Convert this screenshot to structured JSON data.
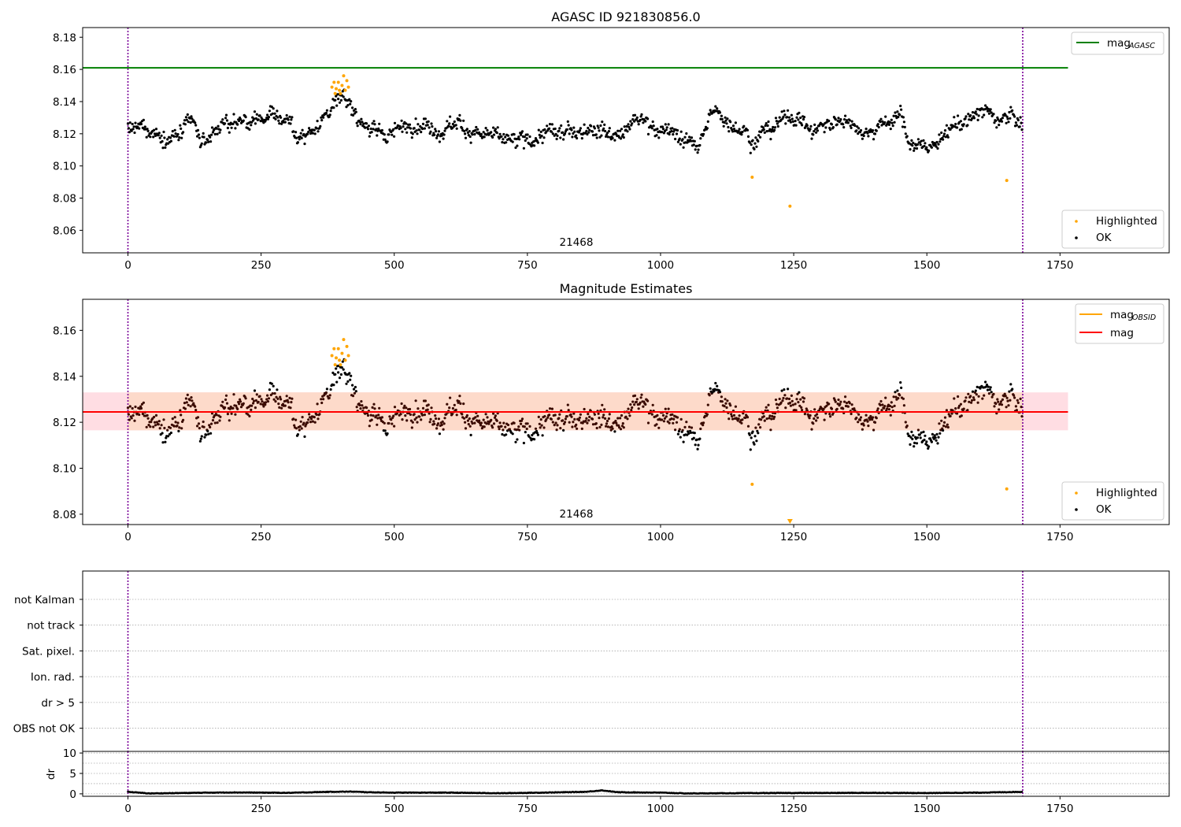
{
  "chart_data": [
    {
      "type": "scatter",
      "title": "AGASC ID 921830856.0",
      "annotation": "21468",
      "xlim": [
        -85,
        1955
      ],
      "ylim": [
        8.046,
        8.186
      ],
      "xticks": [
        "0",
        "250",
        "500",
        "750",
        "1000",
        "1250",
        "1500",
        "1750"
      ],
      "yticks": [
        "8.06",
        "8.08",
        "8.10",
        "8.12",
        "8.14",
        "8.16",
        "8.18"
      ],
      "ref_line": {
        "name_main": "mag",
        "name_sub": "AGASC",
        "y": 8.161,
        "x_range": [
          -85,
          1765
        ],
        "color": "#008000"
      },
      "obs_boundaries": [
        0,
        1680
      ],
      "legend_lines": [
        {
          "name_main": "mag",
          "name_sub": "AGASC",
          "color": "#008000"
        }
      ],
      "legend_points": [
        {
          "name": "Highlighted",
          "color": "#ffa500"
        },
        {
          "name": "OK",
          "color": "#000000"
        }
      ],
      "highlighted_points": [
        [
          383,
          8.149
        ],
        [
          387,
          8.152
        ],
        [
          391,
          8.148
        ],
        [
          395,
          8.152
        ],
        [
          399,
          8.145
        ],
        [
          402,
          8.15
        ],
        [
          405,
          8.156
        ],
        [
          408,
          8.147
        ],
        [
          411,
          8.153
        ],
        [
          414,
          8.149
        ],
        [
          389,
          8.145
        ],
        [
          397,
          8.147
        ],
        [
          1172,
          8.093
        ],
        [
          1243,
          8.075
        ],
        [
          1650,
          8.091
        ]
      ],
      "ok_series_profile": [
        [
          0,
          8.124
        ],
        [
          30,
          8.121
        ],
        [
          60,
          8.119
        ],
        [
          100,
          8.118
        ],
        [
          120,
          8.126
        ],
        [
          140,
          8.112
        ],
        [
          170,
          8.125
        ],
        [
          200,
          8.129
        ],
        [
          230,
          8.124
        ],
        [
          270,
          8.133
        ],
        [
          300,
          8.129
        ],
        [
          320,
          8.116
        ],
        [
          350,
          8.124
        ],
        [
          380,
          8.136
        ],
        [
          400,
          8.143
        ],
        [
          420,
          8.137
        ],
        [
          440,
          8.128
        ],
        [
          470,
          8.118
        ],
        [
          490,
          8.121
        ],
        [
          540,
          8.127
        ],
        [
          580,
          8.123
        ],
        [
          620,
          8.127
        ],
        [
          650,
          8.121
        ],
        [
          700,
          8.116
        ],
        [
          730,
          8.114
        ],
        [
          780,
          8.119
        ],
        [
          830,
          8.121
        ],
        [
          870,
          8.126
        ],
        [
          920,
          8.119
        ],
        [
          960,
          8.129
        ],
        [
          1000,
          8.124
        ],
        [
          1040,
          8.117
        ],
        [
          1070,
          8.111
        ],
        [
          1100,
          8.135
        ],
        [
          1130,
          8.128
        ],
        [
          1160,
          8.122
        ],
        [
          1180,
          8.116
        ],
        [
          1210,
          8.126
        ],
        [
          1250,
          8.131
        ],
        [
          1290,
          8.122
        ],
        [
          1320,
          8.126
        ],
        [
          1350,
          8.129
        ],
        [
          1380,
          8.122
        ],
        [
          1400,
          8.124
        ],
        [
          1450,
          8.131
        ],
        [
          1470,
          8.114
        ],
        [
          1500,
          8.111
        ],
        [
          1530,
          8.117
        ],
        [
          1560,
          8.126
        ],
        [
          1600,
          8.134
        ],
        [
          1640,
          8.129
        ],
        [
          1665,
          8.131
        ],
        [
          1680,
          8.124
        ]
      ]
    },
    {
      "type": "scatter",
      "title": "Magnitude Estimates",
      "annotation": "21468",
      "xlim": [
        -85,
        1955
      ],
      "ylim": [
        8.0755,
        8.1735
      ],
      "xticks": [
        "0",
        "250",
        "500",
        "750",
        "1000",
        "1250",
        "1500",
        "1750"
      ],
      "yticks": [
        "8.08",
        "8.10",
        "8.12",
        "8.14",
        "8.16"
      ],
      "mean_line": {
        "name": "mag",
        "y": 8.1245,
        "x_range": [
          -85,
          1765
        ],
        "color": "#ff0000"
      },
      "band_outer": {
        "y": [
          8.1165,
          8.133
        ],
        "x_range": [
          -85,
          1765
        ],
        "color": "#ffdde3"
      },
      "band_inner": {
        "y": [
          8.1165,
          8.133
        ],
        "x_range": [
          0,
          1680
        ],
        "color": "#fddaca"
      },
      "obs_boundaries": [
        0,
        1680
      ],
      "legend_lines": [
        {
          "name_main": "mag",
          "name_sub": "OBSID",
          "color": "#ffa500"
        },
        {
          "name_main": "mag",
          "name_sub": "",
          "color": "#ff0000"
        }
      ],
      "legend_points": [
        {
          "name": "Highlighted",
          "color": "#ffa500"
        },
        {
          "name": "OK",
          "color": "#000000"
        }
      ],
      "highlighted_points": [
        [
          383,
          8.149
        ],
        [
          387,
          8.152
        ],
        [
          391,
          8.148
        ],
        [
          395,
          8.152
        ],
        [
          399,
          8.145
        ],
        [
          402,
          8.15
        ],
        [
          405,
          8.156
        ],
        [
          408,
          8.147
        ],
        [
          411,
          8.153
        ],
        [
          414,
          8.149
        ],
        [
          389,
          8.145
        ],
        [
          397,
          8.147
        ],
        [
          1172,
          8.093
        ],
        [
          1650,
          8.091
        ]
      ],
      "offscale_marker": {
        "x": 1243,
        "color": "#ffa500"
      }
    },
    {
      "type": "scatter",
      "title": "",
      "categories": [
        "OBS not OK",
        "dr > 5",
        "Ion. rad.",
        "Sat. pixel.",
        "not track",
        "not Kalman"
      ],
      "xlim": [
        -85,
        1955
      ],
      "obs_boundaries": [
        0,
        1680
      ],
      "flag_counts": [
        0,
        0,
        0,
        0,
        0,
        0
      ]
    },
    {
      "type": "line",
      "title": "",
      "ylabel": "dr",
      "xlim": [
        -85,
        1955
      ],
      "ylim": [
        -0.6,
        10.4
      ],
      "xticks": [
        "0",
        "250",
        "500",
        "750",
        "1000",
        "1250",
        "1500",
        "1750"
      ],
      "yticks": [
        "0",
        "5",
        "10"
      ],
      "obs_boundaries": [
        0,
        1680
      ],
      "dr_profile": [
        [
          0,
          0.5
        ],
        [
          20,
          0.3
        ],
        [
          40,
          0.1
        ],
        [
          100,
          0.2
        ],
        [
          150,
          0.3
        ],
        [
          200,
          0.35
        ],
        [
          300,
          0.25
        ],
        [
          380,
          0.5
        ],
        [
          420,
          0.55
        ],
        [
          450,
          0.4
        ],
        [
          500,
          0.3
        ],
        [
          600,
          0.3
        ],
        [
          700,
          0.15
        ],
        [
          800,
          0.35
        ],
        [
          860,
          0.5
        ],
        [
          890,
          0.85
        ],
        [
          920,
          0.4
        ],
        [
          1000,
          0.3
        ],
        [
          1050,
          0.1
        ],
        [
          1200,
          0.2
        ],
        [
          1400,
          0.25
        ],
        [
          1500,
          0.2
        ],
        [
          1600,
          0.3
        ],
        [
          1680,
          0.5
        ]
      ]
    }
  ]
}
